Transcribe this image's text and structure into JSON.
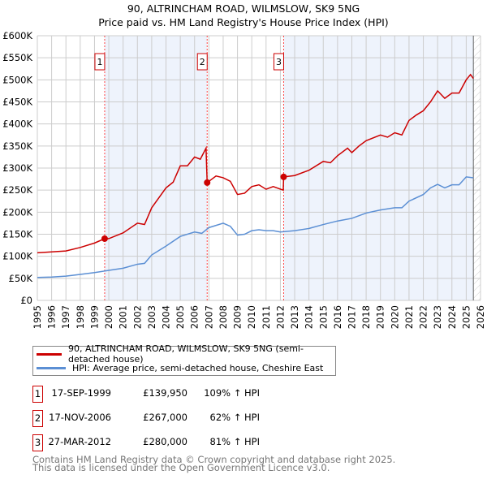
{
  "chart_data": {
    "type": "line",
    "title": "90, ALTRINCHAM ROAD, WILMSLOW, SK9 5NG",
    "subtitle": "Price paid vs. HM Land Registry's House Price Index (HPI)",
    "xlim": [
      1995,
      2026
    ],
    "ylim": [
      0,
      600000
    ],
    "x_ticks": [
      "1995",
      "1996",
      "1997",
      "1998",
      "1999",
      "2000",
      "2001",
      "2002",
      "2003",
      "2004",
      "2005",
      "2006",
      "2007",
      "2008",
      "2009",
      "2010",
      "2011",
      "2012",
      "2013",
      "2014",
      "2015",
      "2016",
      "2017",
      "2018",
      "2019",
      "2020",
      "2021",
      "2022",
      "2023",
      "2024",
      "2025",
      "2026"
    ],
    "y_ticks": [
      {
        "v": 0,
        "l": "£0"
      },
      {
        "v": 50000,
        "l": "£50K"
      },
      {
        "v": 100000,
        "l": "£100K"
      },
      {
        "v": 150000,
        "l": "£150K"
      },
      {
        "v": 200000,
        "l": "£200K"
      },
      {
        "v": 250000,
        "l": "£250K"
      },
      {
        "v": 300000,
        "l": "£300K"
      },
      {
        "v": 350000,
        "l": "£350K"
      },
      {
        "v": 400000,
        "l": "£400K"
      },
      {
        "v": 450000,
        "l": "£450K"
      },
      {
        "v": 500000,
        "l": "£500K"
      },
      {
        "v": 550000,
        "l": "£550K"
      },
      {
        "v": 600000,
        "l": "£600K"
      }
    ],
    "grid": true,
    "series": [
      {
        "name": "90, ALTRINCHAM ROAD, WILMSLOW, SK9 5NG (semi-detached house)",
        "color": "#cc0000",
        "x": [
          1995,
          1996,
          1997,
          1998,
          1999,
          1999.71,
          2000,
          2001,
          2002,
          2002.5,
          2003,
          2004,
          2004.5,
          2005,
          2005.5,
          2006,
          2006.4,
          2006.8,
          2006.88,
          2007.5,
          2008,
          2008.5,
          2009,
          2009.5,
          2010,
          2010.5,
          2011,
          2011.5,
          2012.2,
          2012.23,
          2013,
          2014,
          2015,
          2015.5,
          2016,
          2016.7,
          2017,
          2017.5,
          2018,
          2019,
          2019.5,
          2020,
          2020.5,
          2021,
          2021.5,
          2022,
          2022.5,
          2023,
          2023.5,
          2024,
          2024.5,
          2025,
          2025.3,
          2025.5
        ],
        "y": [
          108000,
          110000,
          112000,
          120000,
          130000,
          139950,
          140000,
          153000,
          175000,
          172000,
          210000,
          255000,
          268000,
          305000,
          305000,
          325000,
          320000,
          345000,
          267000,
          282000,
          278000,
          270000,
          240000,
          243000,
          258000,
          262000,
          252000,
          258000,
          250000,
          280000,
          283000,
          295000,
          315000,
          312000,
          328000,
          345000,
          335000,
          350000,
          362000,
          375000,
          370000,
          380000,
          375000,
          408000,
          420000,
          430000,
          450000,
          475000,
          458000,
          470000,
          470000,
          500000,
          512000,
          503000
        ]
      },
      {
        "name": "HPI: Average price, semi-detached house, Cheshire East",
        "color": "#5b8fd4",
        "x": [
          1995,
          1996,
          1997,
          1998,
          1999,
          2000,
          2001,
          2002,
          2002.5,
          2003,
          2004,
          2005,
          2006,
          2006.5,
          2007,
          2008,
          2008.5,
          2009,
          2009.5,
          2010,
          2010.5,
          2011,
          2011.5,
          2012,
          2013,
          2014,
          2015,
          2016,
          2017,
          2018,
          2019,
          2020,
          2020.5,
          2021,
          2022,
          2022.5,
          2023,
          2023.5,
          2024,
          2024.5,
          2025,
          2025.5
        ],
        "y": [
          52000,
          53000,
          55000,
          59000,
          63000,
          68000,
          73000,
          82000,
          84000,
          103000,
          123000,
          145000,
          155000,
          152000,
          165000,
          175000,
          168000,
          148000,
          150000,
          158000,
          160000,
          158000,
          158000,
          155000,
          158000,
          163000,
          172000,
          180000,
          186000,
          198000,
          205000,
          210000,
          210000,
          225000,
          240000,
          255000,
          263000,
          255000,
          262000,
          262000,
          280000,
          278000
        ]
      }
    ],
    "sales": [
      {
        "n": "1",
        "date": "17-SEP-1999",
        "x": 1999.71,
        "price": "£139,950",
        "value": 139950,
        "hpi": "109% ↑ HPI"
      },
      {
        "n": "2",
        "date": "17-NOV-2006",
        "x": 2006.88,
        "price": "£267,000",
        "value": 267000,
        "hpi": "62% ↑ HPI"
      },
      {
        "n": "3",
        "date": "27-MAR-2012",
        "x": 2012.23,
        "price": "£280,000",
        "value": 280000,
        "hpi": "81% ↑ HPI"
      }
    ],
    "forecast_from": 2025.5,
    "legend_placement": "below"
  },
  "footer": [
    "Contains HM Land Registry data © Crown copyright and database right 2025.",
    "This data is licensed under the Open Government Licence v3.0."
  ]
}
